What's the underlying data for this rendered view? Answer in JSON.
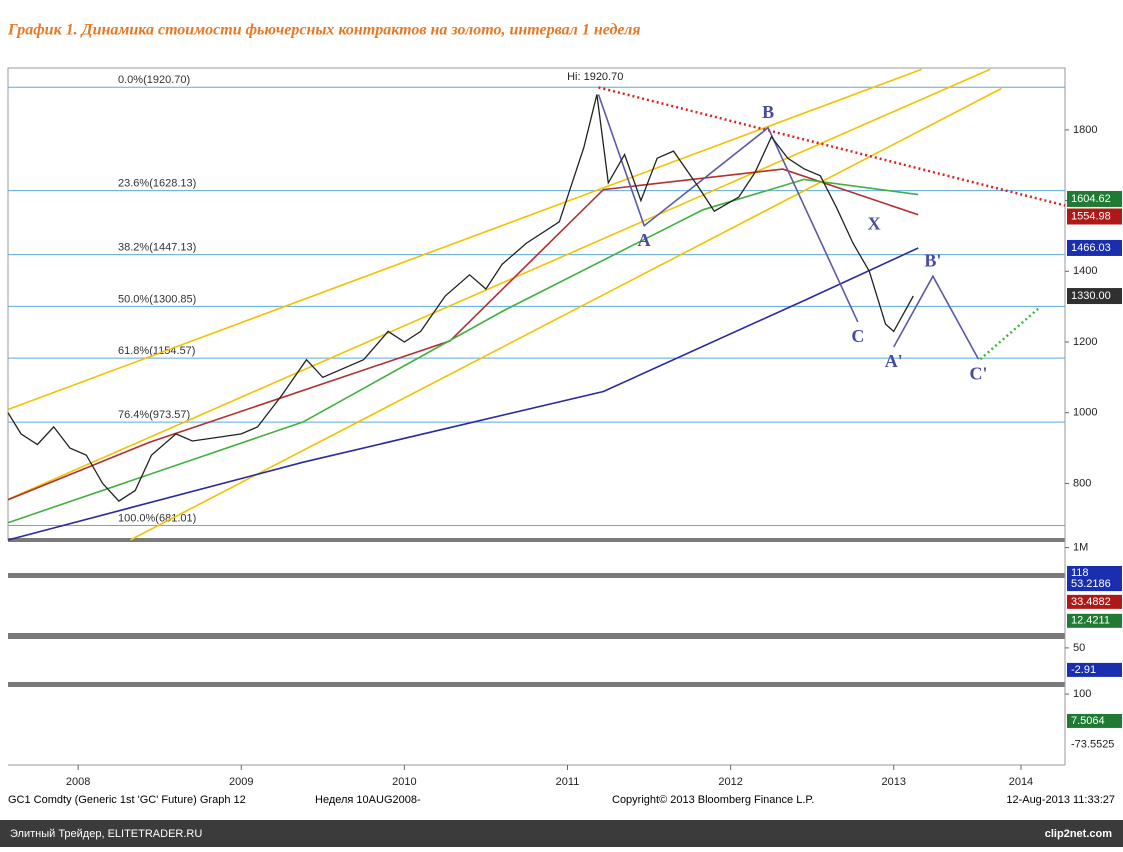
{
  "header": {
    "title": "График 1.   Динамика стоимости фьючерсных контрактов на золото, интервал 1 неделя"
  },
  "chart_data": {
    "type": "line",
    "color": "#222222",
    "x": [
      2008.07,
      2008.15,
      2008.25,
      2008.35,
      2008.45,
      2008.55,
      2008.65,
      2008.75,
      2008.85,
      2008.95,
      2009.1,
      2009.2,
      2009.35,
      2009.5,
      2009.6,
      2009.75,
      2009.9,
      2010.0,
      2010.1,
      2010.25,
      2010.4,
      2010.5,
      2010.6,
      2010.75,
      2010.9,
      2011.0,
      2011.1,
      2011.25,
      2011.45,
      2011.6,
      2011.68,
      2011.75,
      2011.85,
      2011.95,
      2012.05,
      2012.15,
      2012.3,
      2012.4,
      2012.55,
      2012.65,
      2012.75,
      2012.85,
      2012.95,
      2013.05,
      2013.15,
      2013.25,
      2013.35,
      2013.45,
      2013.5,
      2013.62
    ],
    "values": [
      1000,
      940,
      910,
      960,
      900,
      880,
      800,
      750,
      780,
      880,
      940,
      920,
      930,
      940,
      960,
      1050,
      1150,
      1100,
      1120,
      1150,
      1230,
      1200,
      1230,
      1330,
      1390,
      1350,
      1420,
      1480,
      1540,
      1750,
      1900,
      1650,
      1730,
      1600,
      1720,
      1740,
      1640,
      1570,
      1610,
      1680,
      1780,
      1720,
      1690,
      1670,
      1580,
      1480,
      1400,
      1250,
      1230,
      1330
    ],
    "xlim": [
      2008.07,
      2014.55
    ],
    "xticks": [
      {
        "value": 2008.5,
        "label": "2008"
      },
      {
        "value": 2009.5,
        "label": "2009"
      },
      {
        "value": 2010.5,
        "label": "2010"
      },
      {
        "value": 2011.5,
        "label": "2011"
      },
      {
        "value": 2012.5,
        "label": "2012"
      },
      {
        "value": 2013.5,
        "label": "2013"
      },
      {
        "value": 2014.28,
        "label": "2014"
      }
    ],
    "ylim": [
      640,
      1975
    ],
    "yticks": [
      800,
      1000,
      1200,
      1400,
      1600,
      1800
    ],
    "overlays": [
      {
        "color": "#f2c200",
        "style": "solid",
        "x": [
          2008.07,
          2013.67
        ],
        "values": [
          1009,
          1971
        ]
      },
      {
        "color": "#f2c200",
        "style": "solid",
        "x": [
          2008.07,
          2014.09
        ],
        "values": [
          755,
          1971
        ]
      },
      {
        "color": "#f2c200",
        "style": "solid",
        "x": [
          2008.82,
          2014.16
        ],
        "values": [
          640,
          1917
        ]
      },
      {
        "color": "#2a2aa0",
        "style": "solid",
        "x": [
          2008.07,
          2009.88,
          2011.72,
          2012.95,
          2013.65
        ],
        "values": [
          640,
          860,
          1060,
          1317,
          1466
        ]
      },
      {
        "color": "#b03030",
        "style": "solid",
        "x": [
          2008.07,
          2008.94,
          2010.78,
          2011.72,
          2012.82,
          2013.65
        ],
        "values": [
          754,
          917,
          1203,
          1631,
          1689,
          1560
        ]
      },
      {
        "color": "#40b040",
        "style": "solid",
        "x": [
          2008.07,
          2009.88,
          2011.11,
          2012.33,
          2012.95,
          2013.65
        ],
        "values": [
          689,
          974,
          1289,
          1574,
          1660,
          1617
        ]
      },
      {
        "color": "#e02020",
        "style": "dotted",
        "x": [
          2011.69,
          2014.55
        ],
        "values": [
          1920,
          1586
        ]
      },
      {
        "color": "#5a5aa8",
        "style": "solid",
        "x": [
          2011.69,
          2011.97,
          2012.73,
          2013.28,
          null,
          2013.5,
          2013.74,
          2014.02
        ],
        "values": [
          1900,
          1529,
          1806,
          1257,
          null,
          1186,
          1386,
          1151
        ]
      },
      {
        "color": "#30c030",
        "style": "dotted",
        "x": [
          2014.03,
          2014.4
        ],
        "values": [
          1151,
          1300
        ]
      }
    ],
    "fib_levels": [
      {
        "label": "0.0%(1920.70)",
        "value": 1920.7
      },
      {
        "label": "23.6%(1628.13)",
        "value": 1628.13
      },
      {
        "label": "38.2%(1447.13)",
        "value": 1447.13
      },
      {
        "label": "50.0%(1300.85)",
        "value": 1300.85
      },
      {
        "label": "61.8%(1154.57)",
        "value": 1154.57
      },
      {
        "label": "76.4%(973.57)",
        "value": 973.57
      },
      {
        "label": "100.0%(681.01)",
        "value": 681.01
      }
    ],
    "annotation": {
      "label": "Hi: 1920.70",
      "x": 2011.67,
      "value": 1920.7
    },
    "wave_labels": [
      {
        "label": "A",
        "x": 2011.97,
        "value": 1529,
        "position": "below"
      },
      {
        "label": "B",
        "x": 2012.73,
        "value": 1806,
        "position": "above"
      },
      {
        "label": "C",
        "x": 2013.28,
        "value": 1257,
        "position": "below"
      },
      {
        "label": "X",
        "x": 2013.38,
        "value": 1490,
        "position": "above"
      },
      {
        "label": "A'",
        "x": 2013.5,
        "value": 1186,
        "position": "below"
      },
      {
        "label": "B'",
        "x": 2013.74,
        "value": 1386,
        "position": "above"
      },
      {
        "label": "C'",
        "x": 2014.02,
        "value": 1151,
        "position": "below"
      }
    ],
    "price_tags": [
      {
        "value": 1604.62,
        "color": "#1f7a33"
      },
      {
        "value": 1554.98,
        "color": "#b01818"
      },
      {
        "value": 1466.03,
        "color": "#1a2fb0"
      },
      {
        "value": 1330,
        "label": "1330.00",
        "color": "#303030"
      }
    ]
  },
  "indicators": [
    {
      "ylim": [
        0,
        1100000
      ],
      "yticks": [
        {
          "value": 1000000,
          "label": "1M"
        }
      ],
      "tags": [
        {
          "value": 118,
          "color": "#1a2fb0"
        }
      ]
    },
    {
      "ylim": [
        0,
        60
      ],
      "yticks": [],
      "tags": [
        {
          "value": 53.2186,
          "color": "#1a2fb0"
        },
        {
          "value": 33.4882,
          "color": "#b01818"
        },
        {
          "value": 12.4211,
          "color": "#1f7a33"
        }
      ]
    },
    {
      "ylim": [
        -32,
        69
      ],
      "yticks": [
        50
      ],
      "tags": [
        {
          "value": -2.91,
          "color": "#1a2fb0"
        }
      ]
    },
    {
      "ylim": [
        -134,
        121
      ],
      "yticks": [
        100
      ],
      "tags": [
        {
          "value": 7.5064,
          "color": "#1f7a33"
        },
        {
          "value": -73.5525,
          "color": "#ffffff"
        }
      ]
    }
  ],
  "footer": {
    "left": "GC1 Comdty (Generic 1st 'GC' Future) Graph 12",
    "center": "Неделя 10AUG2008-",
    "copyright": "Copyright© 2013 Bloomberg Finance L.P.",
    "date": "12-Aug-2013 11:33:27"
  },
  "bottom_bar": {
    "site": "Элитный Трейдер, ELITETRADER.RU",
    "logo": "clip2net.com"
  }
}
